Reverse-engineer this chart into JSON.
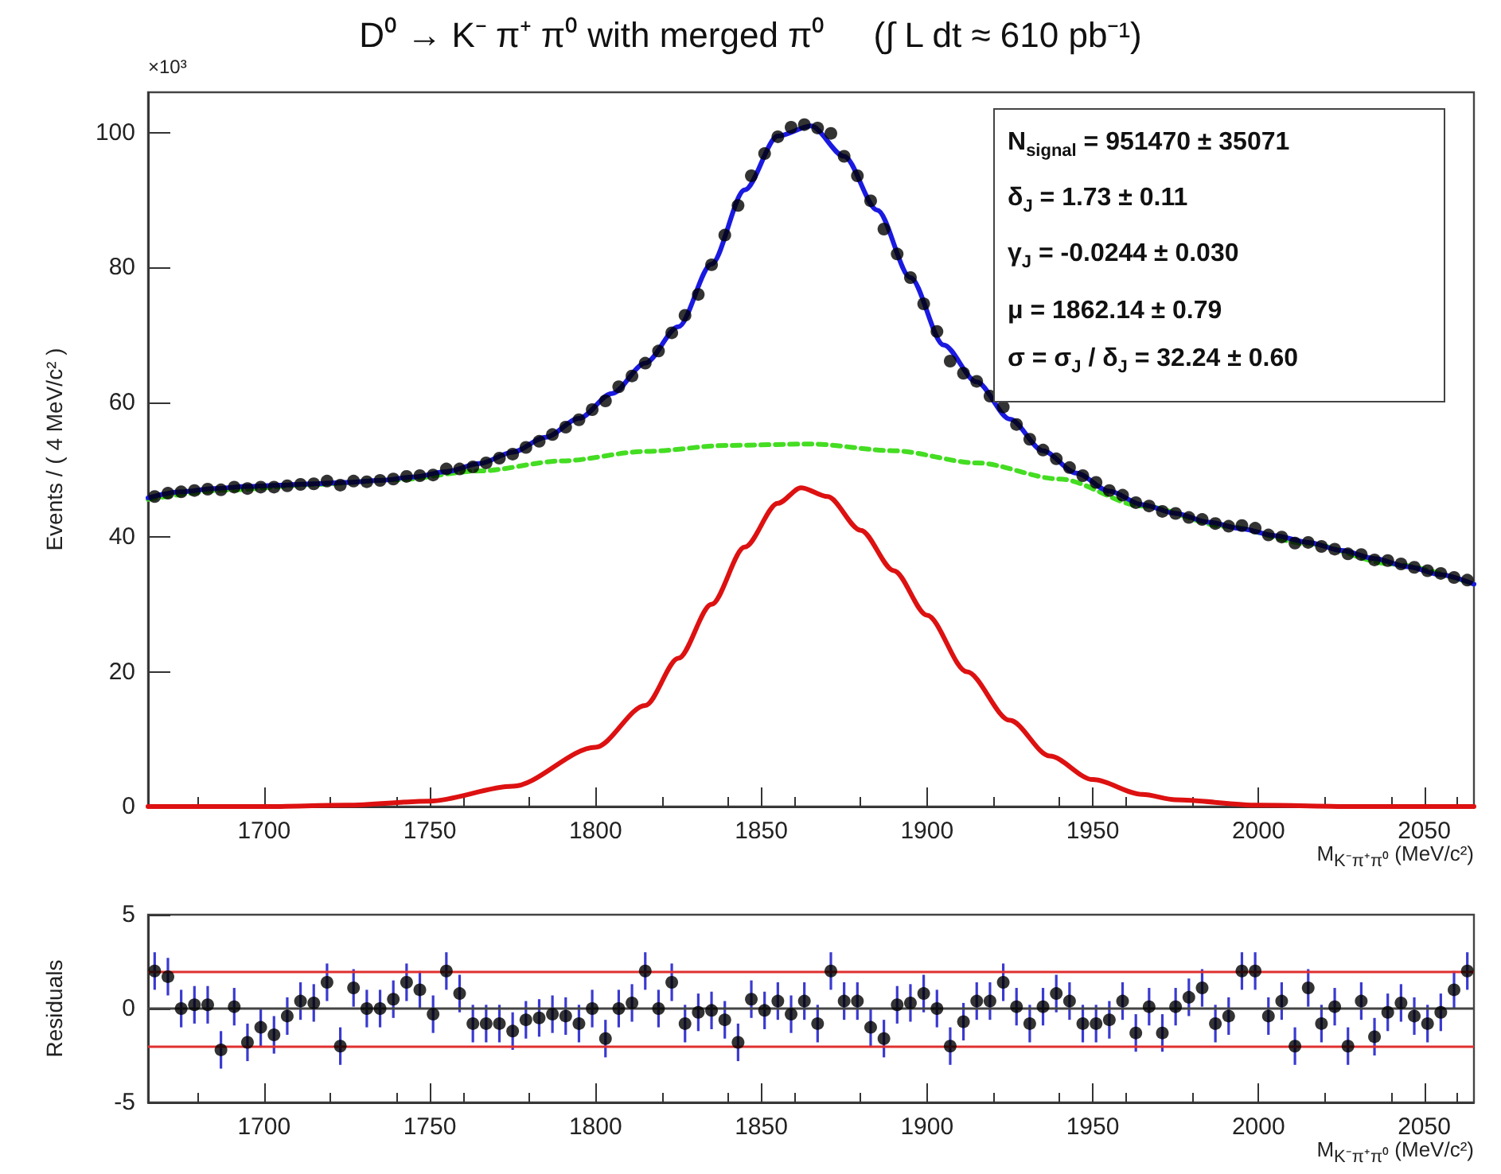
{
  "chart_data": [
    {
      "type": "scatter",
      "title": "D⁰ → K⁻ π⁺ π⁰ with merged π⁰     (∫ L dt ≈ 610 pb⁻¹)",
      "xlabel": "M$_{K⁻π⁺π⁰}$ (MeV/c²)",
      "ylabel": "Events / ( 4 MeV/c² )",
      "annotations": [
        "×10³",
        "N$_{signal}$ =  951470 ± 35071",
        "δ$_{J}$ =  1.73 ± 0.11",
        "γ$_{J}$ = -0.0244 ± 0.030",
        "μ =  1862.14 ± 0.79",
        "σ = σ$_{J}$ / δ$_{J}$ =  32.24 ± 0.60"
      ],
      "xlim": [
        1665,
        2065
      ],
      "xticks": [
        1700,
        1750,
        1800,
        1850,
        1900,
        1950,
        2000,
        2050
      ],
      "ylim": [
        0,
        106
      ],
      "yticks": [
        0,
        20,
        40,
        60,
        80,
        100
      ],
      "series": [
        {
          "type": "line",
          "marker": "none",
          "line_style": "dashed",
          "color": "#44dd22",
          "x": [
            1665,
            1690,
            1715,
            1740,
            1765,
            1790,
            1815,
            1840,
            1865,
            1890,
            1915,
            1940,
            1965,
            1990,
            2015,
            2040,
            2065
          ],
          "values": [
            45.6,
            47.0,
            47.8,
            48.5,
            49.8,
            51.3,
            52.7,
            53.6,
            53.8,
            52.8,
            51.0,
            48.6,
            44.6,
            41.6,
            39.0,
            36.0,
            33.0
          ]
        },
        {
          "type": "line",
          "marker": "none",
          "line_style": "solid",
          "color": "#dd1111",
          "x": [
            1665,
            1700,
            1725,
            1750,
            1775,
            1800,
            1815,
            1825,
            1835,
            1845,
            1855,
            1862,
            1870,
            1880,
            1890,
            1900,
            1912,
            1925,
            1937,
            1950,
            1965,
            1975,
            2000,
            2030,
            2065
          ],
          "values": [
            0,
            0,
            0.2,
            0.8,
            3.0,
            8.8,
            15,
            22,
            30,
            38.5,
            45,
            47.3,
            46,
            41,
            35,
            28.4,
            20,
            12.8,
            7.5,
            4.0,
            1.8,
            1.0,
            0.2,
            0,
            0
          ]
        },
        {
          "type": "scatter",
          "marker": "circle",
          "color": "#000000",
          "x": [
            1667,
            1671,
            1675,
            1679,
            1683,
            1687,
            1691,
            1695,
            1699,
            1703,
            1707,
            1711,
            1715,
            1719,
            1723,
            1727,
            1731,
            1735,
            1739,
            1743,
            1747,
            1751,
            1755,
            1759,
            1763,
            1767,
            1771,
            1775,
            1779,
            1783,
            1787,
            1791,
            1795,
            1799,
            1803,
            1807,
            1811,
            1815,
            1819,
            1823,
            1827,
            1831,
            1835,
            1839,
            1843,
            1847,
            1851,
            1855,
            1859,
            1863,
            1867,
            1871,
            1875,
            1879,
            1883,
            1887,
            1891,
            1895,
            1899,
            1903,
            1907,
            1911,
            1915,
            1919,
            1923,
            1927,
            1931,
            1935,
            1939,
            1943,
            1947,
            1951,
            1955,
            1959,
            1963,
            1967,
            1971,
            1975,
            1979,
            1983,
            1987,
            1991,
            1995,
            1999,
            2003,
            2007,
            2011,
            2015,
            2019,
            2023,
            2027,
            2031,
            2035,
            2039,
            2043,
            2047,
            2051,
            2055,
            2059,
            2063
          ],
          "values": [
            46.0,
            46.5,
            46.7,
            46.9,
            47.1,
            47.0,
            47.4,
            47.2,
            47.4,
            47.4,
            47.6,
            47.8,
            47.9,
            48.3,
            47.7,
            48.3,
            48.2,
            48.4,
            48.6,
            49.0,
            49.1,
            49.2,
            50.1,
            50.1,
            50.4,
            51.0,
            51.7,
            52.3,
            53.3,
            54.2,
            55.2,
            56.3,
            57.4,
            58.9,
            60.2,
            62.3,
            63.9,
            65.8,
            67.6,
            70.3,
            72.9,
            76.0,
            80.4,
            84.8,
            89.2,
            93.6,
            96.9,
            99.4,
            100.8,
            101.2,
            100.7,
            99.9,
            96.5,
            93.6,
            89.9,
            85.7,
            82.0,
            78.5,
            74.6,
            70.5,
            66.1,
            64.3,
            63.1,
            60.9,
            59.3,
            56.7,
            54.5,
            52.9,
            51.6,
            50.3,
            49.1,
            48.1,
            46.9,
            46.2,
            45.1,
            44.6,
            43.8,
            43.5,
            42.9,
            42.6,
            42.0,
            41.6,
            41.7,
            41.3,
            40.3,
            40.0,
            39.1,
            39.2,
            38.6,
            38.2,
            37.5,
            37.4,
            36.6,
            36.5,
            36.0,
            35.5,
            35.0,
            34.6,
            34.0,
            33.6
          ]
        },
        {
          "type": "line",
          "marker": "none",
          "line_style": "solid",
          "color": "#1a1ae0",
          "x": [
            1665,
            1675,
            1685,
            1695,
            1705,
            1715,
            1725,
            1735,
            1745,
            1755,
            1765,
            1775,
            1785,
            1795,
            1805,
            1815,
            1825,
            1835,
            1845,
            1855,
            1865,
            1875,
            1885,
            1895,
            1905,
            1915,
            1925,
            1935,
            1945,
            1955,
            1965,
            1975,
            1985,
            1995,
            2005,
            2015,
            2025,
            2035,
            2045,
            2055,
            2065
          ],
          "values": [
            45.8,
            46.7,
            47.2,
            47.5,
            47.7,
            47.9,
            48.1,
            48.4,
            48.9,
            49.7,
            50.9,
            52.6,
            54.8,
            57.6,
            61.3,
            65.8,
            71.2,
            80.5,
            91.5,
            99.5,
            101.0,
            96.5,
            88.5,
            78.5,
            68.5,
            63.0,
            57.5,
            52.8,
            49.5,
            46.8,
            44.8,
            43.5,
            42.2,
            41.2,
            40.2,
            39.2,
            38.0,
            36.8,
            35.6,
            34.4,
            33.0
          ]
        }
      ]
    },
    {
      "type": "scatter",
      "xlabel": "M$_{K⁻π⁺π⁰}$ (MeV/c²)",
      "ylabel": "Residuals",
      "marker": "circle",
      "color": "#000000",
      "xlim": [
        1665,
        2065
      ],
      "xticks": [
        1700,
        1750,
        1800,
        1850,
        1900,
        1950,
        2000,
        2050
      ],
      "ylim": [
        -5,
        5
      ],
      "yticks": [
        -5,
        0,
        5
      ],
      "ref_lines": [
        {
          "axis": "y",
          "value": 2,
          "color": "#e03030"
        },
        {
          "axis": "y",
          "value": -2,
          "color": "#e03030"
        },
        {
          "axis": "y",
          "value": 0,
          "color": "#444444"
        }
      ],
      "x": [
        1667,
        1671,
        1675,
        1679,
        1683,
        1687,
        1691,
        1695,
        1699,
        1703,
        1707,
        1711,
        1715,
        1719,
        1723,
        1727,
        1731,
        1735,
        1739,
        1743,
        1747,
        1751,
        1755,
        1759,
        1763,
        1767,
        1771,
        1775,
        1779,
        1783,
        1787,
        1791,
        1795,
        1799,
        1803,
        1807,
        1811,
        1815,
        1819,
        1823,
        1827,
        1831,
        1835,
        1839,
        1843,
        1847,
        1851,
        1855,
        1859,
        1863,
        1867,
        1871,
        1875,
        1879,
        1883,
        1887,
        1891,
        1895,
        1899,
        1903,
        1907,
        1911,
        1915,
        1919,
        1923,
        1927,
        1931,
        1935,
        1939,
        1943,
        1947,
        1951,
        1955,
        1959,
        1963,
        1967,
        1971,
        1975,
        1979,
        1983,
        1987,
        1991,
        1995,
        1999,
        2003,
        2007,
        2011,
        2015,
        2019,
        2023,
        2027,
        2031,
        2035,
        2039,
        2043,
        2047,
        2051,
        2055,
        2059,
        2063
      ],
      "values": [
        2,
        1.7,
        0,
        0.2,
        0.2,
        -2.2,
        0.1,
        -1.8,
        -1,
        -1.4,
        -0.4,
        0.4,
        0.3,
        1.4,
        -2,
        1.1,
        0,
        0,
        0.5,
        1.4,
        1,
        -0.3,
        2,
        0.8,
        -0.8,
        -0.8,
        -0.8,
        -1.2,
        -0.6,
        -0.5,
        -0.3,
        -0.4,
        -0.8,
        0,
        -1.6,
        0,
        0.3,
        2,
        0,
        1.4,
        -0.8,
        -0.2,
        -0.1,
        -0.6,
        -1.8,
        0.5,
        -0.1,
        0.4,
        -0.3,
        0.4,
        -0.8,
        2,
        0.4,
        0.4,
        -1,
        -1.6,
        0.2,
        0.3,
        0.8,
        0,
        -2,
        -0.7,
        0.4,
        0.4,
        1.4,
        0.1,
        -0.8,
        0.1,
        0.8,
        0.4,
        -0.8,
        -0.8,
        -0.6,
        0.4,
        -1.3,
        0.1,
        -1.3,
        0.1,
        0.6,
        1.1,
        -0.8,
        -0.4,
        2,
        2,
        -0.4,
        0.4,
        -2,
        1.1,
        -0.8,
        0.1,
        -2,
        0.4,
        -1.5,
        -0.2,
        0.3,
        -0.4,
        -0.8,
        -0.2,
        1,
        2
      ],
      "errors": [
        1,
        1,
        1,
        1,
        1,
        1,
        1,
        1,
        1,
        1,
        1,
        1,
        1,
        1,
        1,
        1,
        1,
        1,
        1,
        1,
        1,
        1,
        1,
        1,
        1,
        1,
        1,
        1,
        1,
        1,
        1,
        1,
        1,
        1,
        1,
        1,
        1,
        1,
        1,
        1,
        1,
        1,
        1,
        1,
        1,
        1,
        1,
        1,
        1,
        1,
        1,
        1,
        1,
        1,
        1,
        1,
        1,
        1,
        1,
        1,
        1,
        1,
        1,
        1,
        1,
        1,
        1,
        1,
        1,
        1,
        1,
        1,
        1,
        1,
        1,
        1,
        1,
        1,
        1,
        1,
        1,
        1,
        1,
        1,
        1,
        1,
        1,
        1,
        1,
        1,
        1,
        1,
        1,
        1,
        1,
        1,
        1,
        1,
        1,
        1
      ]
    }
  ]
}
